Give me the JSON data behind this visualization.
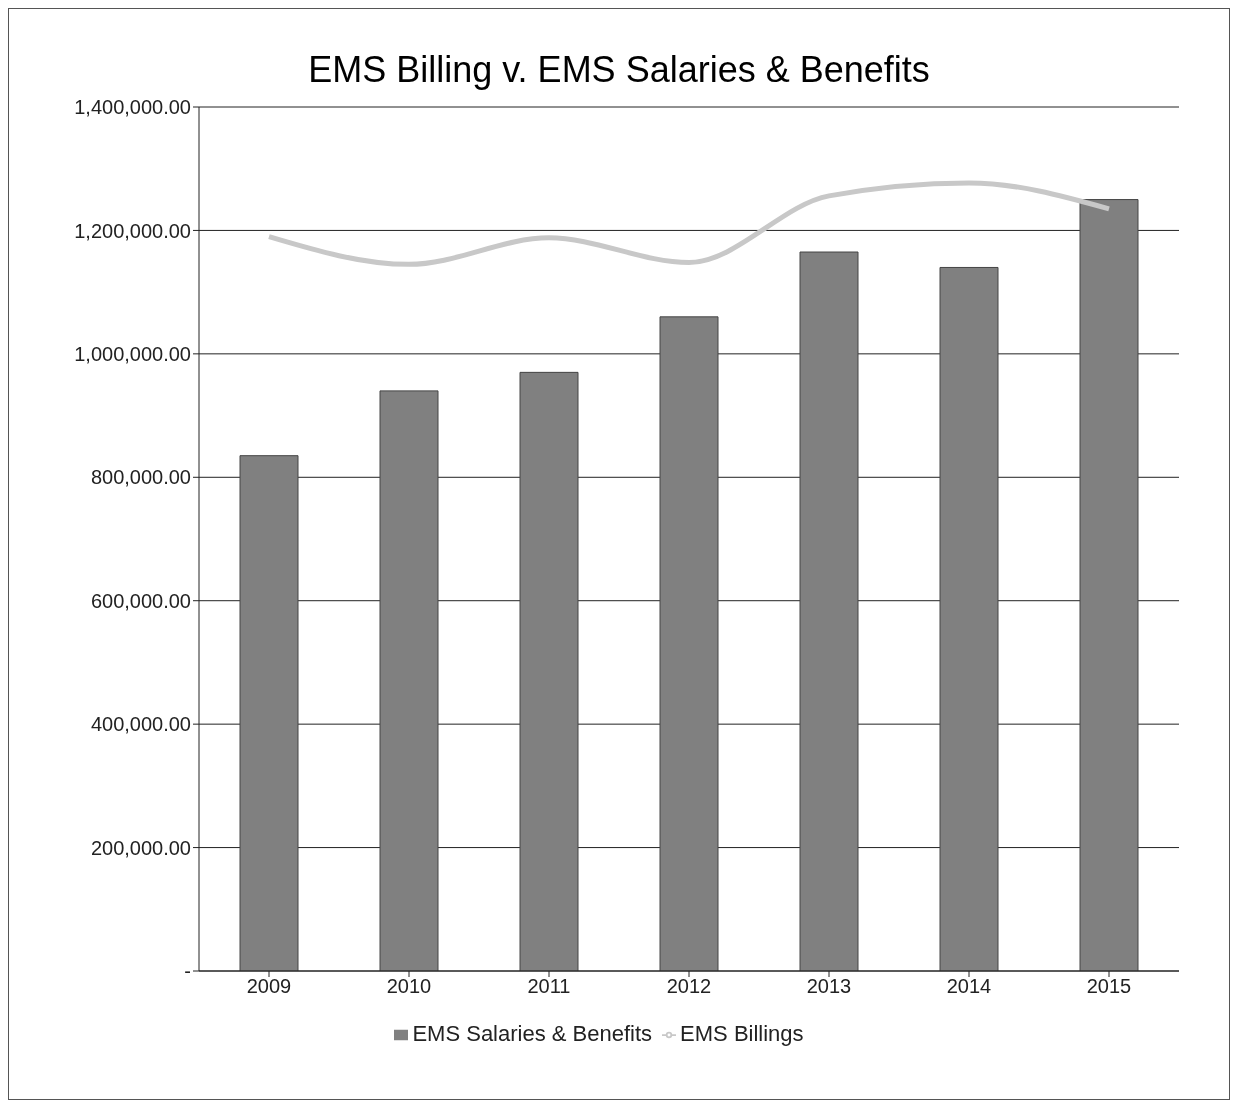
{
  "chart_data": {
    "type": "bar",
    "title": "EMS Billing v. EMS Salaries & Benefits",
    "categories": [
      "2009",
      "2010",
      "2011",
      "2012",
      "2013",
      "2014",
      "2015"
    ],
    "series": [
      {
        "name": "EMS Salaries & Benefits",
        "color": "#808080",
        "values": [
          835000,
          940000,
          970000,
          1060000,
          1165000,
          1140000,
          1250000
        ]
      },
      {
        "name": "EMS Billings",
        "type": "line",
        "color": "#c8c8c8",
        "values": [
          1190000,
          1145000,
          1188000,
          1148000,
          1256000,
          1277000,
          1235000
        ]
      }
    ],
    "ylim": [
      0,
      1400000
    ],
    "yticks": [
      {
        "value": 0,
        "label": "-"
      },
      {
        "value": 200000,
        "label": "200,000.00"
      },
      {
        "value": 400000,
        "label": "400,000.00"
      },
      {
        "value": 600000,
        "label": "600,000.00"
      },
      {
        "value": 800000,
        "label": "800,000.00"
      },
      {
        "value": 1000000,
        "label": "1,000,000.00"
      },
      {
        "value": 1200000,
        "label": "1,200,000.00"
      },
      {
        "value": 1400000,
        "label": "1,400,000.00"
      }
    ],
    "grid": "y",
    "legend": "bottom",
    "marker": "none"
  }
}
